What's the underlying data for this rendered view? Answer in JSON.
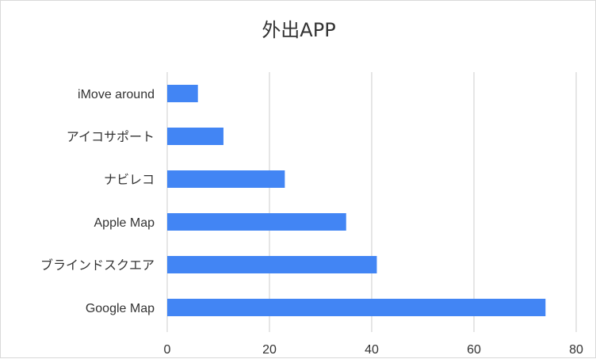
{
  "chart_data": {
    "type": "bar",
    "orientation": "horizontal",
    "title": "外出APP",
    "xlabel": "",
    "ylabel": "",
    "categories": [
      "iMove around",
      "アイコサポート",
      "ナビレコ",
      "Apple Map",
      "ブラインドスクエア",
      "Google Map"
    ],
    "values": [
      6,
      11,
      23,
      35,
      41,
      74
    ],
    "xlim": [
      0,
      80
    ],
    "ticks": [
      "0",
      "20",
      "40",
      "60",
      "80"
    ],
    "tick_values": [
      0,
      20,
      40,
      60,
      80
    ],
    "grid": true,
    "legend": "none",
    "bar_color": "#4285f4",
    "grid_color": "#cccccc"
  }
}
